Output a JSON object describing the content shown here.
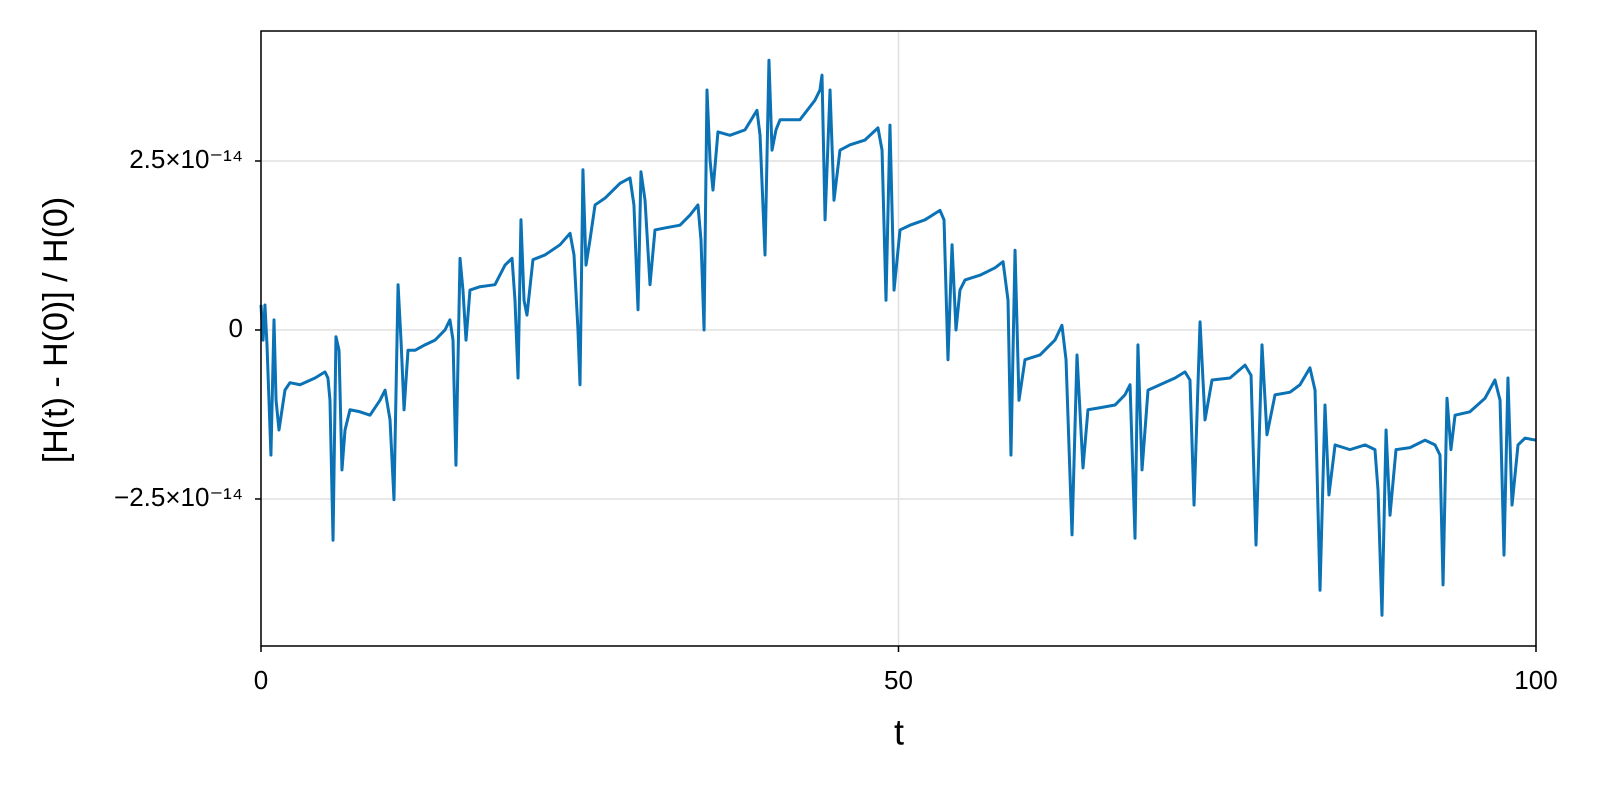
{
  "chart_data": {
    "type": "line",
    "xlabel": "t",
    "ylabel": "[H(t) - H(0)] / H(0)",
    "color": "#0a72b5",
    "grid": true,
    "xlim": [
      0,
      100
    ],
    "xticks": [
      0,
      50,
      100
    ],
    "ylim": [
      -4.675e-14,
      4.423e-14
    ],
    "yticks": [
      {
        "value": -2.5e-14,
        "label": "−2.5×10⁻¹⁴"
      },
      0,
      {
        "value": 2.5e-14,
        "label": "2.5×10⁻¹⁴"
      }
    ],
    "x": [
      0,
      0.16,
      0.31,
      0.47,
      0.78,
      1.02,
      1.18,
      1.41,
      1.88,
      2.27,
      3.06,
      4.24,
      5.02,
      5.25,
      5.41,
      5.65,
      5.88,
      6.12,
      6.35,
      6.59,
      6.98,
      7.76,
      8.55,
      9.33,
      9.73,
      10.12,
      10.43,
      10.75,
      10.98,
      11.22,
      11.53,
      12.08,
      12.86,
      13.65,
      14.43,
      14.82,
      15.06,
      15.29,
      15.61,
      15.84,
      16.08,
      16.39,
      17.18,
      18.35,
      19.14,
      19.69,
      19.92,
      20.16,
      20.39,
      20.63,
      20.86,
      21.33,
      22.27,
      23.45,
      24.24,
      24.55,
      24.86,
      25.02,
      25.25,
      25.49,
      25.8,
      26.2,
      26.98,
      28.16,
      28.94,
      29.25,
      29.57,
      29.8,
      30.12,
      30.51,
      30.9,
      31.69,
      32.86,
      33.65,
      34.27,
      34.51,
      34.75,
      34.98,
      35.22,
      35.45,
      35.84,
      36.78,
      37.96,
      38.9,
      39.14,
      39.53,
      39.84,
      40.08,
      40.39,
      40.71,
      42.27,
      43.45,
      43.84,
      44.0,
      44.24,
      44.63,
      44.94,
      45.41,
      46.2,
      47.37,
      48.39,
      48.71,
      49.02,
      49.33,
      49.65,
      50.12,
      50.9,
      52.08,
      53.25,
      53.57,
      53.88,
      54.2,
      54.51,
      54.82,
      55.22,
      56.39,
      57.57,
      58.2,
      58.59,
      58.82,
      59.14,
      59.45,
      59.92,
      61.1,
      62.27,
      62.82,
      63.14,
      63.61,
      64.0,
      64.47,
      64.86,
      65.8,
      66.98,
      67.76,
      68.16,
      68.55,
      68.78,
      69.1,
      69.57,
      70.51,
      71.69,
      72.47,
      72.86,
      73.18,
      73.65,
      74.04,
      74.59,
      76.0,
      77.18,
      77.65,
      78.04,
      78.51,
      78.9,
      79.53,
      80.71,
      81.49,
      82.27,
      82.67,
      83.06,
      83.45,
      83.76,
      84.24,
      85.41,
      86.59,
      87.37,
      87.61,
      87.92,
      88.24,
      88.55,
      89.02,
      90.12,
      91.29,
      92.08,
      92.47,
      92.71,
      93.02,
      93.33,
      93.65,
      94.82,
      96.0,
      96.78,
      97.18,
      97.49,
      97.8,
      98.12,
      98.59,
      99.14,
      100.0
    ],
    "values": [
      3.7e-15,
      -1.5e-15,
      3.7e-15,
      -2.2e-15,
      -1.85e-14,
      1.5e-15,
      -1.04e-14,
      -1.48e-14,
      -8.9e-15,
      -7.8e-15,
      -8.1e-15,
      -7.1e-15,
      -6.2e-15,
      -7.1e-15,
      -1.04e-14,
      -3.11e-14,
      -1e-15,
      -3e-15,
      -2.07e-14,
      -1.48e-14,
      -1.18e-14,
      -1.21e-14,
      -1.26e-14,
      -1.04e-14,
      -8.9e-15,
      -1.33e-14,
      -2.51e-14,
      6.7e-15,
      -1.5e-15,
      -1.18e-14,
      -3e-15,
      -3e-15,
      -2.2e-15,
      -1.5e-15,
      0.0,
      1.5e-15,
      -1.5e-15,
      -2e-14,
      1.06e-14,
      5.9e-15,
      -1.5e-15,
      5.9e-15,
      6.4e-15,
      6.7e-15,
      9.6e-15,
      1.06e-14,
      4.4e-15,
      -7.1e-15,
      1.63e-14,
      4.4e-15,
      2.2e-15,
      1.04e-14,
      1.11e-14,
      1.26e-14,
      1.43e-14,
      1.11e-14,
      0.0,
      -8.1e-15,
      2.37e-14,
      9.6e-15,
      1.33e-14,
      1.85e-14,
      1.95e-14,
      2.17e-14,
      2.25e-14,
      1.85e-14,
      3e-15,
      2.34e-14,
      1.92e-14,
      6.7e-15,
      1.48e-14,
      1.51e-14,
      1.55e-14,
      1.7e-14,
      1.85e-14,
      1.33e-14,
      0.0,
      3.55e-14,
      2.51e-14,
      2.07e-14,
      2.93e-14,
      2.88e-14,
      2.96e-14,
      3.25e-14,
      2.88e-14,
      1.11e-14,
      3.99e-14,
      2.66e-14,
      2.96e-14,
      3.11e-14,
      3.11e-14,
      3.4e-14,
      3.55e-14,
      3.77e-14,
      1.63e-14,
      3.55e-14,
      1.92e-14,
      2.66e-14,
      2.74e-14,
      2.81e-14,
      2.99e-14,
      2.66e-14,
      4.4e-15,
      3.03e-14,
      5.9e-15,
      1.48e-14,
      1.55e-14,
      1.63e-14,
      1.77e-14,
      1.63e-14,
      -4.4e-15,
      1.26e-14,
      0.0,
      5.9e-15,
      7.4e-15,
      8.1e-15,
      9.2e-15,
      1.01e-14,
      4.4e-15,
      -1.85e-14,
      1.18e-14,
      -1.04e-14,
      -4.4e-15,
      -3.7e-15,
      -1.5e-15,
      7e-16,
      -4.4e-15,
      -3.03e-14,
      -3.7e-15,
      -2.04e-14,
      -1.18e-14,
      -1.15e-14,
      -1.11e-14,
      -9.6e-15,
      -8.1e-15,
      -3.08e-14,
      -2.2e-15,
      -2.07e-14,
      -8.9e-15,
      -8.1e-15,
      -7.1e-15,
      -6.2e-15,
      -7.4e-15,
      -2.59e-14,
      1.2e-15,
      -1.33e-14,
      -7.4e-15,
      -7.1e-15,
      -5.2e-15,
      -6.7e-15,
      -3.18e-14,
      -2.2e-15,
      -1.55e-14,
      -9.6e-15,
      -9.2e-15,
      -8.1e-15,
      -5.6e-15,
      -8.9e-15,
      -3.85e-14,
      -1.11e-14,
      -2.44e-14,
      -1.7e-14,
      -1.77e-14,
      -1.7e-14,
      -1.77e-14,
      -2.37e-14,
      -4.22e-14,
      -1.48e-14,
      -2.74e-14,
      -1.77e-14,
      -1.74e-14,
      -1.63e-14,
      -1.7e-14,
      -1.85e-14,
      -3.77e-14,
      -1.01e-14,
      -1.77e-14,
      -1.26e-14,
      -1.21e-14,
      -1.01e-14,
      -7.4e-15,
      -1.04e-14,
      -3.33e-14,
      -7.1e-15,
      -2.59e-14,
      -1.7e-14,
      -1.6e-14,
      -1.63e-14
    ]
  }
}
